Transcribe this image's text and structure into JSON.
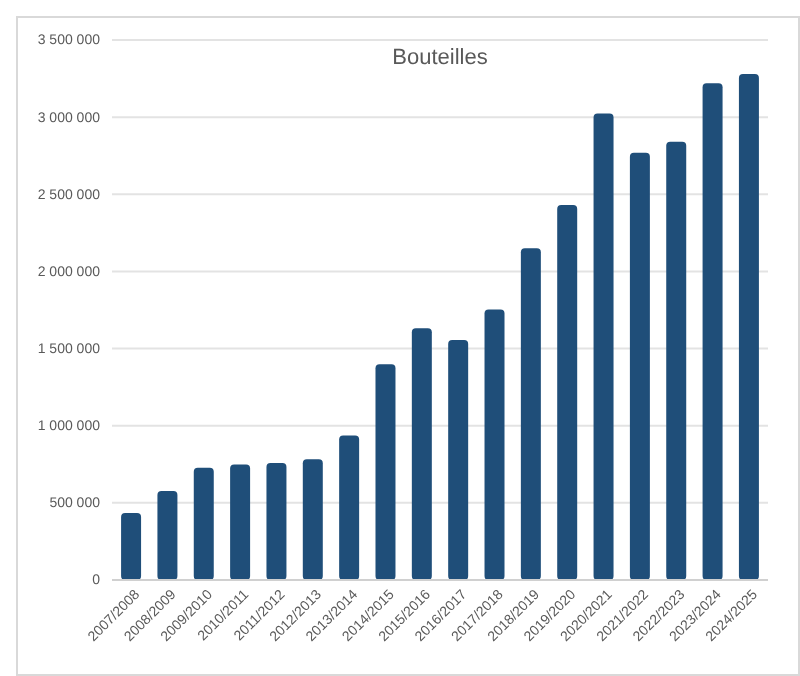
{
  "chart_data": {
    "type": "bar",
    "title": "Bouteilles",
    "categories": [
      "2007/2008",
      "2008/2009",
      "2009/2010",
      "2010/2011",
      "2011/2012",
      "2012/2013",
      "2013/2014",
      "2014/2015",
      "2015/2016",
      "2016/2017",
      "2017/2018",
      "2018/2019",
      "2019/2020",
      "2020/2021",
      "2021/2022",
      "2022/2023",
      "2023/2024",
      "2024/2025"
    ],
    "values": [
      435000,
      577000,
      728000,
      749000,
      758000,
      783000,
      937000,
      1398000,
      1631000,
      1556000,
      1753000,
      2150000,
      2430000,
      3024000,
      2770000,
      2840000,
      3220000,
      3280000
    ],
    "color": "#1f4e79",
    "ylim": [
      0,
      3500000
    ],
    "yticks": [
      {
        "value": 0,
        "label": "0"
      },
      {
        "value": 500000,
        "label": "500 000"
      },
      {
        "value": 1000000,
        "label": "1 000 000"
      },
      {
        "value": 1500000,
        "label": "1 500 000"
      },
      {
        "value": 2000000,
        "label": "2 000 000"
      },
      {
        "value": 2500000,
        "label": "2 500 000"
      },
      {
        "value": 3000000,
        "label": "3 000 000"
      },
      {
        "value": 3500000,
        "label": "3 500 000"
      }
    ],
    "grid": "y"
  }
}
